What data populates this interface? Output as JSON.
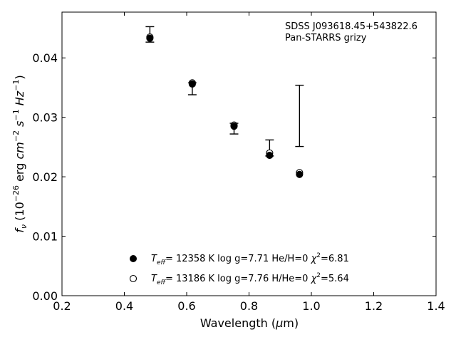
{
  "chart_data": {
    "type": "scatter",
    "annotation": {
      "line1": "SDSS J093618.45+543822.6",
      "line2": "Pan-STARRS grizy"
    },
    "xlabel": {
      "text": "Wavelength (",
      "sym": "μ",
      "tail": "m)"
    },
    "ylabel": {
      "f": "f",
      "nu": "ν",
      "open": " (10",
      "exp1": "−26",
      "erg": " erg ",
      "cm": "cm",
      "exp2": "−2",
      "s": " s",
      "exp3": "−1",
      "hz": " Hz",
      "exp4": "−1",
      "close": ")"
    },
    "xlim": [
      0.2,
      1.4
    ],
    "ylim": [
      0.0,
      0.0477
    ],
    "xticks": [
      0.2,
      0.4,
      0.6,
      0.8,
      1.0,
      1.2,
      1.4
    ],
    "xtick_labels": [
      "0.2",
      "0.4",
      "0.6",
      "0.8",
      "1.0",
      "1.2",
      "1.4"
    ],
    "yticks": [
      0.0,
      0.01,
      0.02,
      0.03,
      0.04
    ],
    "ytick_labels": [
      "0.00",
      "0.01",
      "0.02",
      "0.03",
      "0.04"
    ],
    "grid": false,
    "legend_position": "lower-center",
    "observed": {
      "x": [
        0.482,
        0.618,
        0.752,
        0.866,
        0.962
      ],
      "y_low": [
        0.04265,
        0.0338,
        0.0272,
        0.0235,
        0.0251
      ],
      "y_high": [
        0.04525,
        0.0358,
        0.029,
        0.0262,
        0.0354
      ]
    },
    "series": [
      {
        "name": "Teff= 12358 K  log g=7.71  He/H=0  χ2=6.81",
        "marker": "filled",
        "color": "#000000",
        "x": [
          0.482,
          0.618,
          0.752,
          0.866,
          0.962
        ],
        "y": [
          0.0433,
          0.0356,
          0.0285,
          0.0236,
          0.0204
        ]
      },
      {
        "name": "Teff= 13186 K  log g=7.76  H/He=0  χ2=5.64",
        "marker": "open",
        "color": "#000000",
        "x": [
          0.482,
          0.618,
          0.752,
          0.866,
          0.962
        ],
        "y": [
          0.0435,
          0.0358,
          0.0287,
          0.024,
          0.0207
        ]
      }
    ],
    "legend": [
      {
        "T": "T",
        "eff": "eff",
        "pre": "= 12358 K  log g=7.71  He/H=0  ",
        "chi": "χ",
        "two": "2",
        "post": "=6.81"
      },
      {
        "T": "T",
        "eff": "eff",
        "pre": "= 13186 K  log g=7.76  H/He=0  ",
        "chi": "χ",
        "two": "2",
        "post": "=5.64"
      }
    ]
  }
}
